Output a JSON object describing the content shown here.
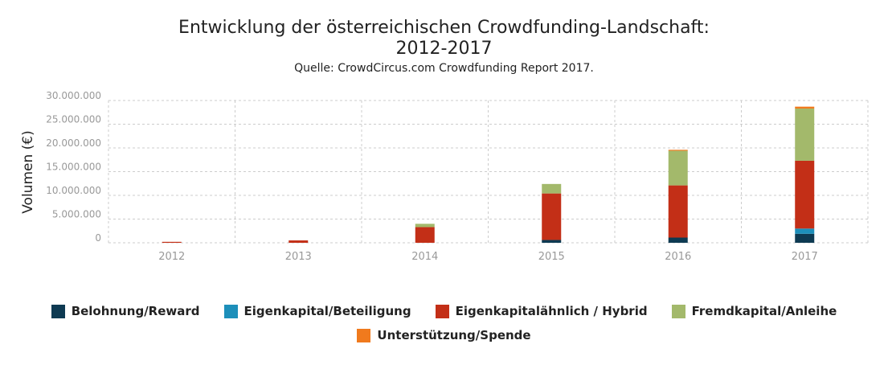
{
  "title_line1": "Entwicklung der österreichischen Crowdfunding-Landschaft:",
  "title_line2": "2012-2017",
  "subtitle": "Quelle: CrowdCircus.com Crowdfunding Report 2017.",
  "chart_data": {
    "type": "bar",
    "stacked": true,
    "ylabel": "Volumen (€)",
    "xlabel": "",
    "ylim": [
      0,
      30000000
    ],
    "yticks": [
      "0",
      "5.000.000",
      "10.000.000",
      "15.000.000",
      "20.000.000",
      "25.000.000",
      "30.000.000"
    ],
    "ytick_values": [
      0,
      5000000,
      10000000,
      15000000,
      20000000,
      25000000,
      30000000
    ],
    "categories": [
      "2012",
      "2013",
      "2014",
      "2015",
      "2016",
      "2017"
    ],
    "grid": true,
    "legend_position": "bottom",
    "series": [
      {
        "name": "Belohnung/Reward",
        "color": "#0e3a52",
        "values": [
          0,
          0,
          0,
          600000,
          1100000,
          1900000
        ]
      },
      {
        "name": "Eigenkapital/Beteiligung",
        "color": "#1d8fba",
        "values": [
          0,
          0,
          0,
          0,
          0,
          1100000
        ]
      },
      {
        "name": "Eigenkapitalähnlich / Hybrid",
        "color": "#c32f17",
        "values": [
          200000,
          500000,
          3300000,
          9800000,
          11000000,
          14300000
        ]
      },
      {
        "name": "Fremdkapital/Anleihe",
        "color": "#a3b96b",
        "values": [
          0,
          0,
          700000,
          2000000,
          7300000,
          11000000
        ]
      },
      {
        "name": "Unterstützung/Spende",
        "color": "#f07a1d",
        "values": [
          0,
          0,
          0,
          0,
          200000,
          400000
        ]
      }
    ]
  }
}
